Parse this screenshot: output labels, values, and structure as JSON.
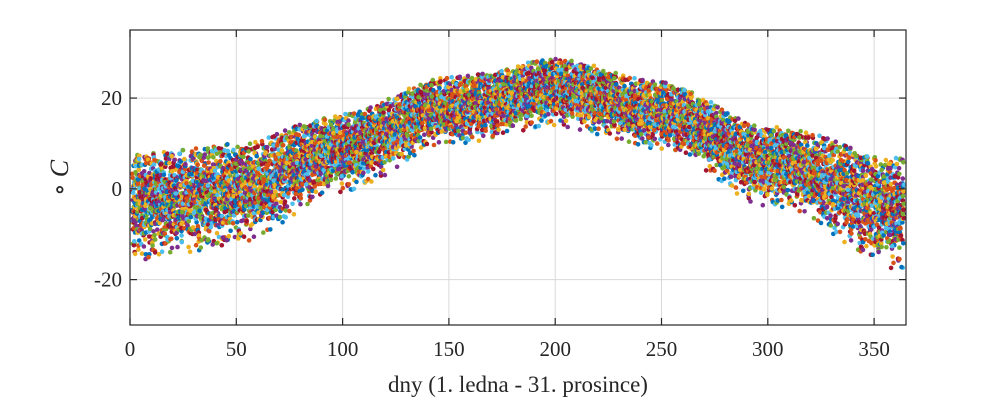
{
  "chart_data": {
    "type": "scatter",
    "xlabel": "dny (1. ledna - 31. prosince)",
    "ylabel_symbol": "∘",
    "ylabel_unit": "C",
    "xlim": [
      0,
      365
    ],
    "ylim": [
      -30,
      35
    ],
    "xticks": [
      0,
      50,
      100,
      150,
      200,
      250,
      300,
      350
    ],
    "yticks": [
      -20,
      0,
      20
    ],
    "grid": true,
    "colors": [
      "#0072BD",
      "#D95319",
      "#EDB120",
      "#7E2F8E",
      "#77AC30",
      "#4DBEEE",
      "#A2142F"
    ],
    "trend": {
      "description_points": [
        {
          "day": 0,
          "center": -3,
          "spread": 10
        },
        {
          "day": 50,
          "center": 0,
          "spread": 9
        },
        {
          "day": 100,
          "center": 9,
          "spread": 7
        },
        {
          "day": 150,
          "center": 18,
          "spread": 6
        },
        {
          "day": 200,
          "center": 22,
          "spread": 6
        },
        {
          "day": 250,
          "center": 17,
          "spread": 6
        },
        {
          "day": 300,
          "center": 6,
          "spread": 7
        },
        {
          "day": 365,
          "center": -4,
          "spread": 10
        }
      ]
    }
  }
}
